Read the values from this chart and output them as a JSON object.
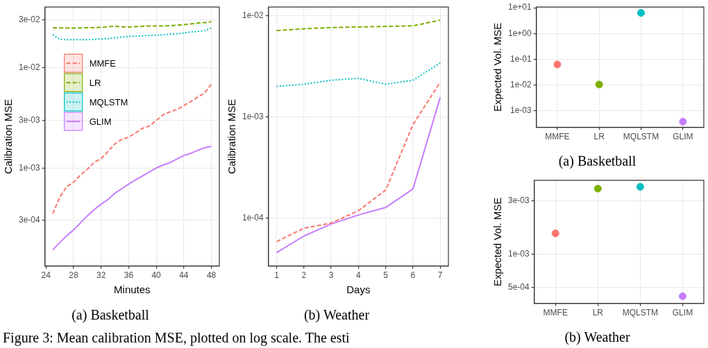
{
  "chart_data": [
    {
      "type": "line",
      "title": "(a) Basketball",
      "xlabel": "Minutes",
      "ylabel": "Calibration MSE",
      "x": [
        25,
        26,
        27,
        28,
        29,
        30,
        31,
        32,
        33,
        34,
        35,
        36,
        37,
        38,
        39,
        40,
        41,
        42,
        43,
        44,
        45,
        46,
        47,
        48
      ],
      "xlim": [
        23.85,
        49.15
      ],
      "xticks": [
        24,
        28,
        32,
        36,
        40,
        44,
        48
      ],
      "ylim": [
        0.000105,
        0.0405
      ],
      "yticks": [
        {
          "value": 0.03,
          "label": "3e-02"
        },
        {
          "value": 0.01,
          "label": "1e-02"
        },
        {
          "value": 0.003,
          "label": "3e-03"
        },
        {
          "value": 0.001,
          "label": "1e-03"
        },
        {
          "value": 0.0003,
          "label": "3e-04"
        }
      ],
      "log": "y",
      "grid": true,
      "legend": "top left",
      "series": [
        {
          "name": "MMFE",
          "color": "#f8766d",
          "line_style": "dashed",
          "values": [
            0.00035,
            0.00051,
            0.00065,
            0.00072,
            0.00085,
            0.00097,
            0.00114,
            0.00124,
            0.00146,
            0.00174,
            0.00193,
            0.00203,
            0.00224,
            0.00249,
            0.00263,
            0.00298,
            0.00339,
            0.00364,
            0.00384,
            0.0042,
            0.0046,
            0.0051,
            0.0056,
            0.0069
          ]
        },
        {
          "name": "LR",
          "color": "#7cae00",
          "line_style": "dashed",
          "values": [
            0.0252,
            0.0251,
            0.025,
            0.025,
            0.0251,
            0.0252,
            0.0252,
            0.0254,
            0.0258,
            0.026,
            0.0257,
            0.0256,
            0.0258,
            0.026,
            0.0262,
            0.0262,
            0.0262,
            0.0264,
            0.0267,
            0.027,
            0.0275,
            0.028,
            0.0283,
            0.0289
          ]
        },
        {
          "name": "MQLSTM",
          "color": "#00bfc4",
          "line_style": "dotted",
          "values": [
            0.0215,
            0.0193,
            0.0191,
            0.0191,
            0.0191,
            0.0191,
            0.0193,
            0.0195,
            0.0196,
            0.02,
            0.0203,
            0.0206,
            0.0207,
            0.0209,
            0.0211,
            0.0212,
            0.0214,
            0.0217,
            0.0219,
            0.0223,
            0.0229,
            0.0231,
            0.0236,
            0.025
          ]
        },
        {
          "name": "GLIM",
          "color": "#c77cff",
          "line_style": "solid",
          "values": [
            0.000152,
            0.000179,
            0.00021,
            0.00024,
            0.000282,
            0.000332,
            0.000384,
            0.000434,
            0.000484,
            0.00056,
            0.00062,
            0.00069,
            0.00076,
            0.00083,
            0.00091,
            0.001,
            0.00107,
            0.00113,
            0.00123,
            0.00133,
            0.0014,
            0.0015,
            0.00159,
            0.00165
          ]
        }
      ],
      "annotations": [
        "Figure 3: Mean calibration MSE, plotted on log scale. The esti"
      ]
    },
    {
      "type": "line",
      "title": "(b) Weather",
      "xlabel": "Days",
      "ylabel": "Calibration MSE",
      "x": [
        1,
        2,
        3,
        4,
        5,
        6,
        7
      ],
      "xlim": [
        0.7,
        7.3
      ],
      "xticks": [
        1,
        2,
        3,
        4,
        5,
        6,
        7
      ],
      "ylim": [
        3.4e-05,
        0.0121
      ],
      "yticks": [
        {
          "value": 0.01,
          "label": "1e-02"
        },
        {
          "value": 0.001,
          "label": "1e-03"
        },
        {
          "value": 0.0001,
          "label": "1e-04"
        }
      ],
      "log": "y",
      "grid": true,
      "series": [
        {
          "color": "#f8766d",
          "line_style": "dashed",
          "values": [
            5.9e-05,
            8e-05,
            9e-05,
            0.000119,
            0.00019,
            0.00084,
            0.0022
          ]
        },
        {
          "color": "#7cae00",
          "line_style": "dashed",
          "values": [
            0.0071,
            0.0074,
            0.0076,
            0.0077,
            0.0078,
            0.0079,
            0.009
          ]
        },
        {
          "color": "#00bfc4",
          "line_style": "dotted",
          "values": [
            0.002,
            0.0021,
            0.0023,
            0.0024,
            0.0021,
            0.0023,
            0.0034
          ]
        },
        {
          "color": "#c77cff",
          "line_style": "solid",
          "values": [
            4.6e-05,
            6.7e-05,
            8.8e-05,
            0.000108,
            0.000128,
            0.000195,
            0.00156
          ]
        }
      ]
    },
    {
      "type": "scatter",
      "title": "(a) Basketball",
      "ylabel": "Expected Vol. MSE",
      "categories": [
        "MMFE",
        "LR",
        "MQLSTM",
        "GLIM"
      ],
      "values": [
        0.063,
        0.0105,
        6.3,
        0.00038
      ],
      "colors": [
        "#f8766d",
        "#7cae00",
        "#00bfc4",
        "#c77cff"
      ],
      "ylim": [
        0.00023,
        10.6
      ],
      "yticks": [
        {
          "value": 10,
          "label": "1e+01"
        },
        {
          "value": 1,
          "label": "1e+00"
        },
        {
          "value": 0.1,
          "label": "1e-01"
        },
        {
          "value": 0.01,
          "label": "1e-02"
        },
        {
          "value": 0.001,
          "label": "1e-03"
        }
      ],
      "log": "y",
      "grid": true,
      "marker": "circle"
    },
    {
      "type": "scatter",
      "title": "(b) Weather",
      "ylabel": "Expected Vol. MSE",
      "categories": [
        "MMFE",
        "LR",
        "MQLSTM",
        "GLIM"
      ],
      "values": [
        0.00153,
        0.00386,
        0.00401,
        0.000416
      ],
      "colors": [
        "#f8766d",
        "#7cae00",
        "#00bfc4",
        "#c77cff"
      ],
      "ylim": [
        0.000359,
        0.00458
      ],
      "yticks": [
        {
          "value": 0.003,
          "label": "3e-03"
        },
        {
          "value": 0.001,
          "label": "1e-03"
        },
        {
          "value": 0.0005,
          "label": "5e-04"
        }
      ],
      "log": "y",
      "grid": true,
      "marker": "circle"
    }
  ]
}
